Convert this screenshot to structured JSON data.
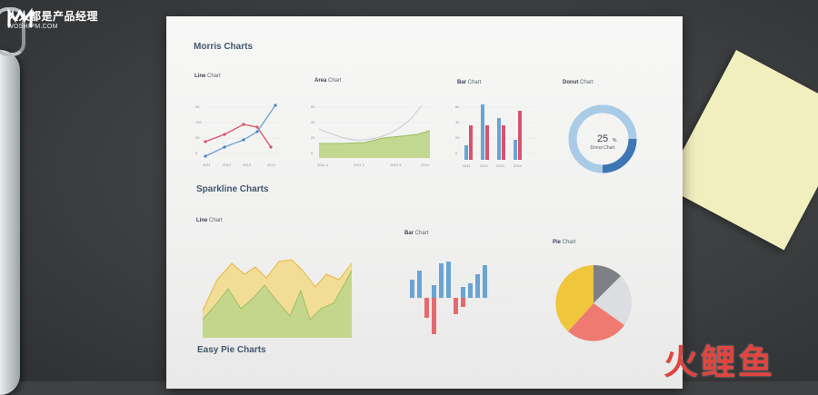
{
  "brand": {
    "name_cn": "人人都是产品经理",
    "url": "WOSHIPM.COM",
    "watermark": "火鲤鱼",
    "watermark_color": "#e0453f"
  },
  "document": {
    "sections": {
      "morris": "Morris Charts",
      "sparkline": "Sparkline Charts",
      "easy_pie": "Easy Pie Charts"
    },
    "morris_line": {
      "bold": "Line",
      "rest": " Chart"
    },
    "morris_area": {
      "bold": "Area",
      "rest": " Chart"
    },
    "morris_bar": {
      "bold": "Bar",
      "rest": " Chart"
    },
    "morris_donut": {
      "bold": "Donut",
      "rest": " Chart",
      "percent": "25",
      "percent_sign": "%",
      "center_label": "Donut Chart"
    },
    "spark_line": {
      "bold": "Line",
      "rest": " Chart"
    },
    "spark_bar": {
      "bold": "Bar",
      "rest": " Chart"
    },
    "spark_pie": {
      "bold": "Pie",
      "rest": " Chart"
    },
    "years_line": [
      "2011",
      "2012",
      "2013",
      "2014"
    ],
    "years_area": [
      "2011 4",
      "2011 2",
      "2013 3",
      "2014"
    ],
    "years_bar": [
      "2011",
      "2012",
      "2013",
      "2014"
    ],
    "line_y_ticks": [
      "60",
      "100",
      "50",
      "0"
    ],
    "area_y_ticks": [
      "60",
      "40",
      "20",
      "0"
    ],
    "bar_y_ticks": [
      "60",
      "40",
      "20",
      "0"
    ]
  },
  "colors": {
    "blue": "#6aa4d4",
    "red": "#d9526a",
    "green": "#b8d27f",
    "yellow": "#f0c63c",
    "salmon": "#ef7a72",
    "gray": "#7e8085",
    "light_gray": "#dcdde0"
  }
}
